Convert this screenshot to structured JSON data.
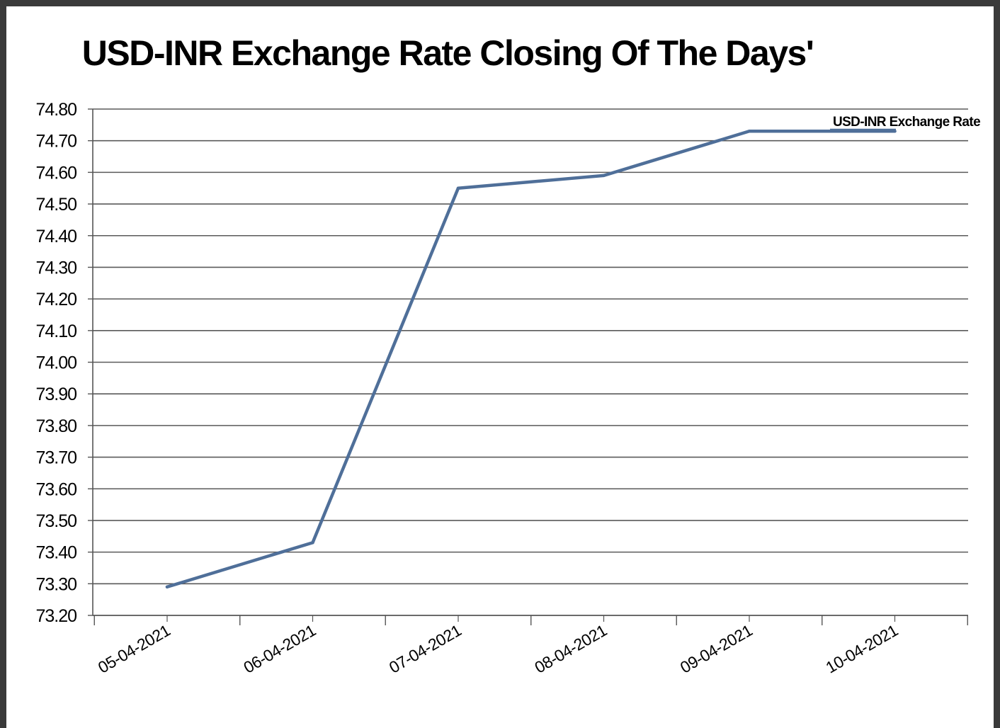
{
  "chart_data": {
    "type": "line",
    "title": "USD-INR Exchange Rate Closing Of The Days'",
    "xlabel": "",
    "ylabel": "",
    "categories": [
      "05-04-2021",
      "06-04-2021",
      "07-04-2021",
      "08-04-2021",
      "09-04-2021",
      "10-04-2021"
    ],
    "series": [
      {
        "name": "USD-INR Exchange Rate",
        "values": [
          73.29,
          73.43,
          74.55,
          74.59,
          74.73,
          74.73
        ],
        "color": "#4f6f99"
      }
    ],
    "ylim": [
      73.2,
      74.8
    ],
    "yticks": [
      "73.20",
      "73.30",
      "73.40",
      "73.50",
      "73.60",
      "73.70",
      "73.80",
      "73.90",
      "74.00",
      "74.10",
      "74.20",
      "74.30",
      "74.40",
      "74.50",
      "74.60",
      "74.70",
      "74.80"
    ],
    "grid": true,
    "legend_position": "top-right"
  }
}
